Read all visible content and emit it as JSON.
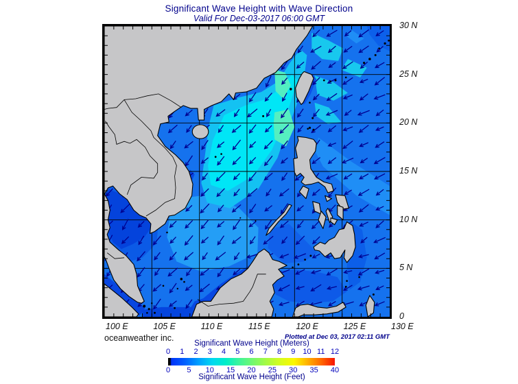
{
  "title": "Significant Wave Height with Wave Direction",
  "subtitle": "Valid For Dec-03-2017 06:00 GMT",
  "credit": "oceanweather inc.",
  "plotted_note": "Plotted at Dec 03, 2017 02:11 GMT",
  "axes": {
    "lat_ticks": [
      {
        "deg": 30,
        "label": "30 N"
      },
      {
        "deg": 25,
        "label": "25 N"
      },
      {
        "deg": 20,
        "label": "20 N"
      },
      {
        "deg": 15,
        "label": "15 N"
      },
      {
        "deg": 10,
        "label": "10 N"
      },
      {
        "deg": 5,
        "label": "5 N"
      },
      {
        "deg": 0,
        "label": "0"
      }
    ],
    "lon_ticks": [
      {
        "deg": 100,
        "label": "100 E"
      },
      {
        "deg": 105,
        "label": "105 E"
      },
      {
        "deg": 110,
        "label": "110 E"
      },
      {
        "deg": 115,
        "label": "115 E"
      },
      {
        "deg": 120,
        "label": "120 E"
      },
      {
        "deg": 125,
        "label": "125 E"
      },
      {
        "deg": 130,
        "label": "130 E"
      }
    ],
    "lon_range": [
      100,
      130
    ],
    "lat_range": [
      0,
      30
    ],
    "grid_interval_deg": 5
  },
  "colorbar": {
    "meters_label": "Significant Wave Height (Meters)",
    "feet_label": "Significant Wave Height (Feet)",
    "meters_ticks": [
      "0",
      "1",
      "2",
      "3",
      "4",
      "5",
      "6",
      "7",
      "8",
      "9",
      "10",
      "11",
      "12"
    ],
    "meters_max": 12,
    "feet_ticks": [
      "0",
      "5",
      "10",
      "15",
      "20",
      "25",
      "30",
      "35",
      "40"
    ],
    "feet_max": 40,
    "scale_colors": [
      "#000000",
      "#0033f8",
      "#0060ff",
      "#00a0ff",
      "#00d8f0",
      "#00eec8",
      "#40f49a",
      "#74f86e",
      "#a8fa42",
      "#d6fc1e",
      "#fcf800",
      "#ffb000",
      "#ff6800",
      "#f81400"
    ]
  },
  "colors": {
    "land": "#c6c6c8",
    "coast": "#000000",
    "sea": "#1572ee",
    "arrow": "#000090",
    "grid": "#000000",
    "text_navy": "#00008b",
    "tick_blue": "#0000bb"
  }
}
